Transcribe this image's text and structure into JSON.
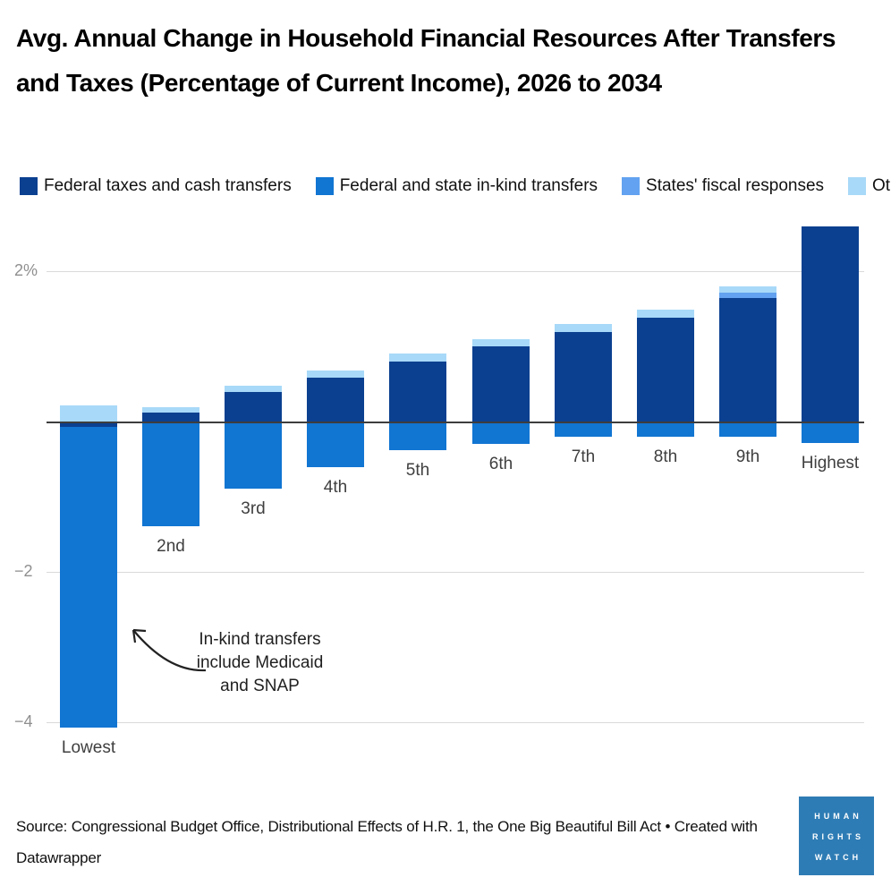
{
  "title": "Avg. Annual Change in Household Financial Resources After Transfers and Taxes (Percentage of Current Income), 2026 to 2034",
  "annotation": {
    "lines": [
      "In-kind transfers",
      "include Medicaid",
      "and SNAP"
    ]
  },
  "source": "Source: Congressional Budget Office, Distributional Effects of H.R. 1, the One Big Beautiful Bill Act • Created with Datawrapper",
  "logo": {
    "line1": "HUMAN",
    "line2": "RIGHTS",
    "line3": "WATCH",
    "background": "#2e7cb5",
    "text_color": "#ffffff"
  },
  "colors": {
    "grid": "#dadada",
    "zero_line": "#3d3d3d",
    "axis_label": "#8f8f8f",
    "category_label": "#3f3f3f"
  },
  "chart_data": {
    "type": "bar",
    "stacked": true,
    "title": "Avg. Annual Change in Household Financial Resources After Transfers and Taxes (Percentage of Current Income), 2026 to 2034",
    "xlabel": "",
    "ylabel": "",
    "ylim": [
      -4.5,
      2.8
    ],
    "grid": "horizontal",
    "legend_position": "top",
    "units": "% of current income",
    "categories": [
      "Lowest",
      "2nd",
      "3rd",
      "4th",
      "5th",
      "6th",
      "7th",
      "8th",
      "9th",
      "Highest"
    ],
    "series": [
      {
        "name": "Federal taxes and cash transfers",
        "color": "#0b4090",
        "values": [
          -0.07,
          0.12,
          0.39,
          0.58,
          0.8,
          1.0,
          1.19,
          1.38,
          1.64,
          2.6
        ]
      },
      {
        "name": "Federal and state in-kind transfers",
        "color": "#1175d2",
        "values": [
          -4.0,
          -1.39,
          -0.89,
          -0.61,
          -0.38,
          -0.3,
          -0.2,
          -0.2,
          -0.2,
          -0.29
        ]
      },
      {
        "name": "States' fiscal responses",
        "color": "#63a2f0",
        "values": [
          0,
          0,
          0,
          0,
          0,
          0,
          0,
          0,
          0.08,
          0
        ]
      },
      {
        "name": "Other",
        "color": "#a8d9f8",
        "values": [
          0.21,
          0.07,
          0.09,
          0.1,
          0.1,
          0.1,
          0.11,
          0.11,
          0.08,
          0
        ]
      }
    ],
    "y_ticks": [
      {
        "value": 2,
        "label": "2%"
      },
      {
        "value": 0,
        "label": ""
      },
      {
        "value": -2,
        "label": "−2"
      },
      {
        "value": -4,
        "label": "−4"
      }
    ],
    "annotation_text": "In-kind transfers include Medicaid and SNAP"
  }
}
